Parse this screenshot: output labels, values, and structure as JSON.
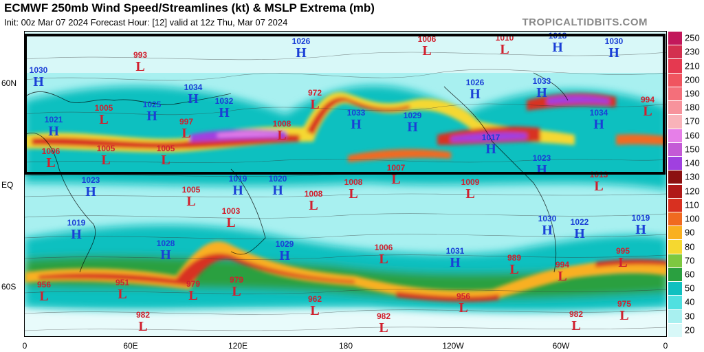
{
  "header": {
    "title": "ECMWF 250mb Wind Speed/Streamlines (kt) & MSLP Extrema (mb)",
    "subtitle": "Init: 00z Mar 07 2024   Forecast Hour: [12]   valid at 12z Thu, Mar 07 2024",
    "brand": "TROPICALTIDBITS.COM"
  },
  "axes": {
    "lat_labels": [
      "60N",
      "EQ",
      "60S"
    ],
    "lon_labels": [
      "0",
      "60E",
      "120E",
      "180",
      "120W",
      "60W",
      "0"
    ]
  },
  "colorbar": {
    "labels": [
      "250",
      "230",
      "210",
      "200",
      "190",
      "180",
      "170",
      "160",
      "150",
      "140",
      "130",
      "120",
      "110",
      "100",
      "90",
      "80",
      "70",
      "60",
      "50",
      "40",
      "30",
      "20"
    ],
    "colors": [
      "#c2185b",
      "#d32f4f",
      "#e53950",
      "#f0545f",
      "#f46f7a",
      "#f7939c",
      "#f9b3b9",
      "#e67fe8",
      "#c45ad6",
      "#a040e0",
      "#8c1010",
      "#b01818",
      "#d83020",
      "#f06a20",
      "#f9b020",
      "#f5d830",
      "#7dc840",
      "#2aa040",
      "#10c0c0",
      "#50e0e0",
      "#a8f0f0",
      "#d8f8f8"
    ]
  },
  "highs": [
    {
      "label": "H",
      "value": "1026"
    },
    {
      "label": "H",
      "value": "1018"
    },
    {
      "label": "H",
      "value": "1030"
    },
    {
      "label": "H",
      "value": "1030"
    },
    {
      "label": "H",
      "value": "1034"
    },
    {
      "label": "H",
      "value": "1032"
    },
    {
      "label": "H",
      "value": "1025"
    },
    {
      "label": "H",
      "value": "1021"
    },
    {
      "label": "H",
      "value": "1033"
    },
    {
      "label": "H",
      "value": "1029"
    },
    {
      "label": "H",
      "value": "1026"
    },
    {
      "label": "H",
      "value": "1033"
    },
    {
      "label": "H",
      "value": "1034"
    },
    {
      "label": "H",
      "value": "1017"
    },
    {
      "label": "H",
      "value": "1023"
    },
    {
      "label": "H",
      "value": "1023"
    },
    {
      "label": "H",
      "value": "1019"
    },
    {
      "label": "H",
      "value": "1020"
    },
    {
      "label": "H",
      "value": "1019"
    },
    {
      "label": "H",
      "value": "1028"
    },
    {
      "label": "H",
      "value": "1029"
    },
    {
      "label": "H",
      "value": "1031"
    },
    {
      "label": "H",
      "value": "1030"
    },
    {
      "label": "H",
      "value": "1022"
    },
    {
      "label": "H",
      "value": "1019"
    }
  ],
  "lows": [
    {
      "label": "L",
      "value": "993"
    },
    {
      "label": "L",
      "value": "1006"
    },
    {
      "label": "L",
      "value": "1010"
    },
    {
      "label": "L",
      "value": "972"
    },
    {
      "label": "L",
      "value": "994"
    },
    {
      "label": "L",
      "value": "1005"
    },
    {
      "label": "L",
      "value": "997"
    },
    {
      "label": "L",
      "value": "1008"
    },
    {
      "label": "L",
      "value": "1006"
    },
    {
      "label": "L",
      "value": "1005"
    },
    {
      "label": "L",
      "value": "1005"
    },
    {
      "label": "L",
      "value": "1007"
    },
    {
      "label": "L",
      "value": "1013"
    },
    {
      "label": "L",
      "value": "1005"
    },
    {
      "label": "L",
      "value": "1008"
    },
    {
      "label": "L",
      "value": "1008"
    },
    {
      "label": "L",
      "value": "1009"
    },
    {
      "label": "L",
      "value": "1003"
    },
    {
      "label": "L",
      "value": "1006"
    },
    {
      "label": "L",
      "value": "989"
    },
    {
      "label": "L",
      "value": "995"
    },
    {
      "label": "L",
      "value": "994"
    },
    {
      "label": "L",
      "value": "956"
    },
    {
      "label": "L",
      "value": "951"
    },
    {
      "label": "L",
      "value": "979"
    },
    {
      "label": "L",
      "value": "979"
    },
    {
      "label": "L",
      "value": "962"
    },
    {
      "label": "L",
      "value": "956"
    },
    {
      "label": "L",
      "value": "975"
    },
    {
      "label": "L",
      "value": "982"
    },
    {
      "label": "L",
      "value": "982"
    },
    {
      "label": "L",
      "value": "982"
    }
  ]
}
